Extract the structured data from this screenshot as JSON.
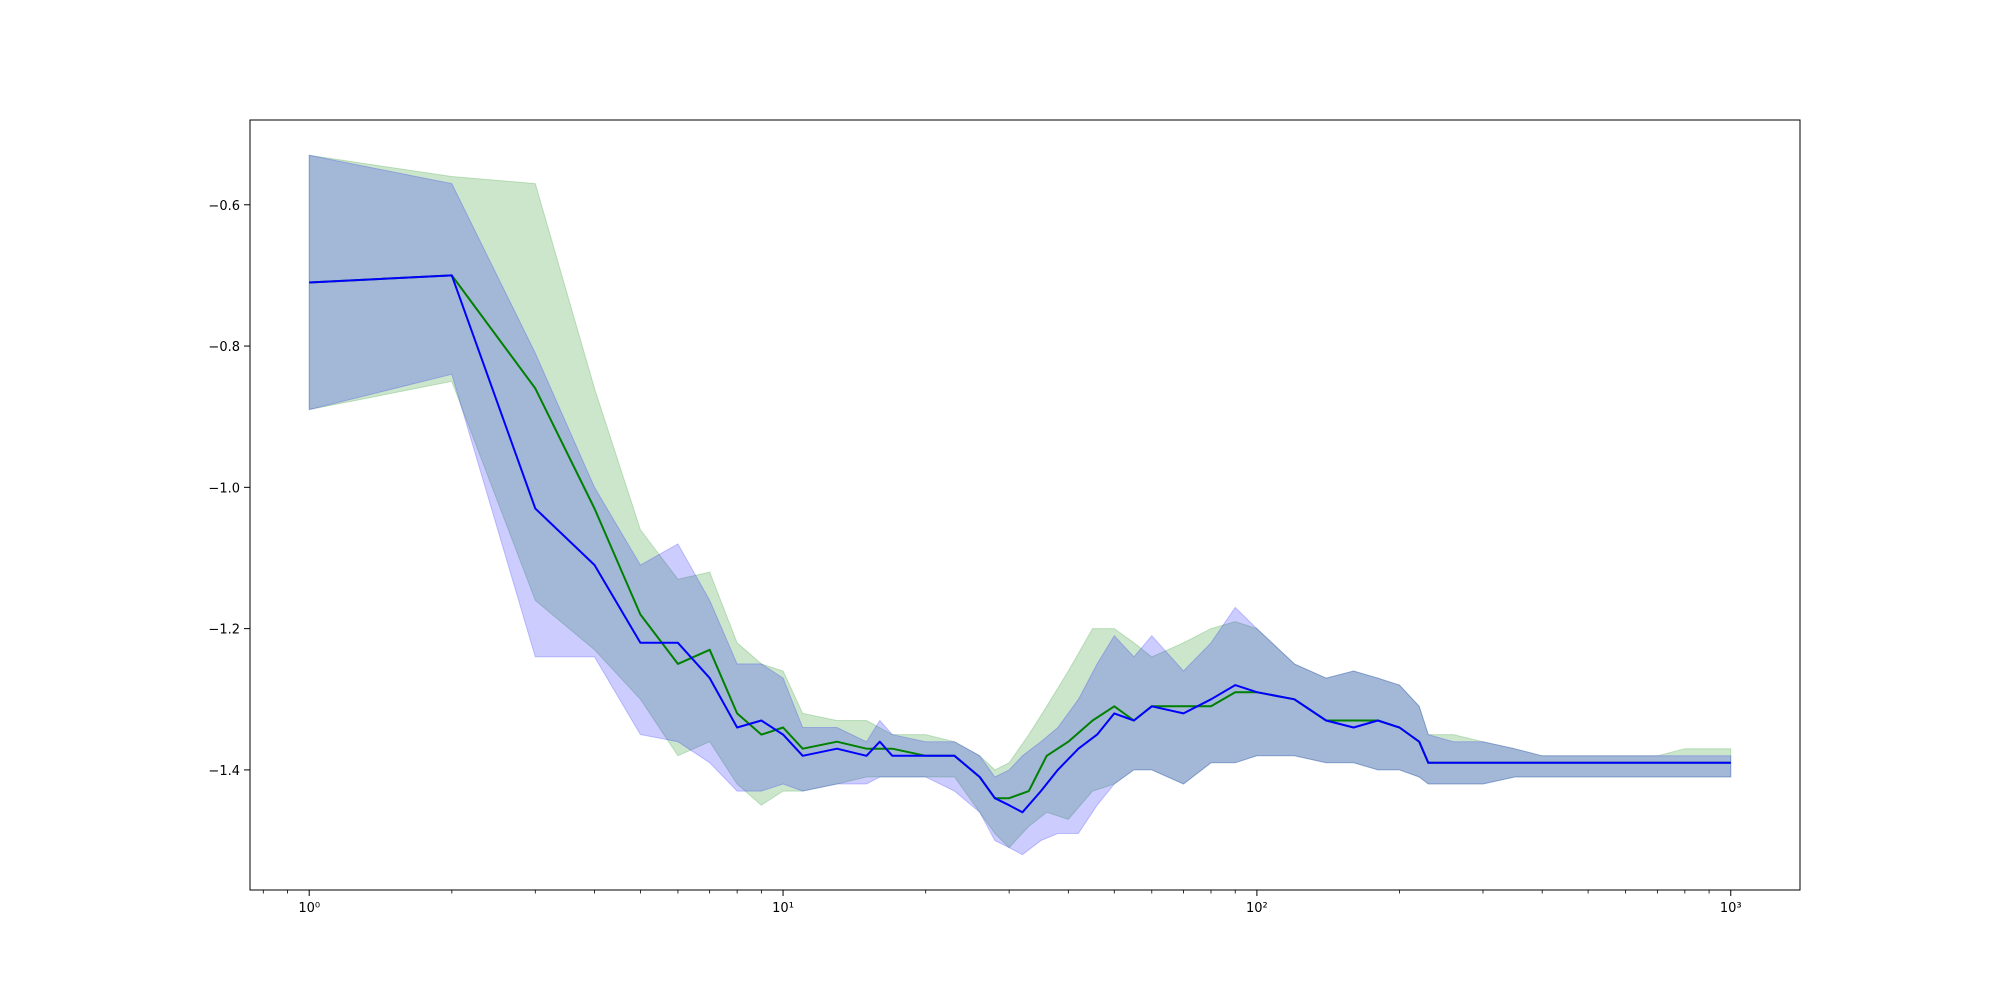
{
  "chart_data": {
    "type": "line",
    "title": "",
    "xlabel": "",
    "ylabel": "",
    "xscale": "log",
    "xlim": [
      0.75,
      1400
    ],
    "ylim": [
      -1.57,
      -0.48
    ],
    "grid": false,
    "legend": "none",
    "x_ticks": [
      {
        "value": 1,
        "label": "10⁰"
      },
      {
        "value": 10,
        "label": "10¹"
      },
      {
        "value": 100,
        "label": "10²"
      },
      {
        "value": 1000,
        "label": "10³"
      }
    ],
    "y_ticks": [
      {
        "value": -0.6,
        "label": "−0.6"
      },
      {
        "value": -0.8,
        "label": "−0.8"
      },
      {
        "value": -1.0,
        "label": "−1.0"
      },
      {
        "value": -1.2,
        "label": "−1.2"
      },
      {
        "value": -1.4,
        "label": "−1.4"
      }
    ],
    "series": [
      {
        "color": "#008000",
        "band_color": "#008000",
        "x": [
          1,
          2,
          3,
          4,
          5,
          6,
          7,
          8,
          9,
          10,
          11,
          13,
          15,
          17,
          20,
          23,
          26,
          28,
          30,
          33,
          36,
          40,
          45,
          50,
          55,
          60,
          70,
          80,
          90,
          100,
          120,
          140,
          160,
          180,
          200,
          220,
          230,
          260,
          300,
          350,
          400,
          500,
          600,
          700,
          800,
          900,
          1000
        ],
        "y": [
          -0.71,
          -0.7,
          -0.86,
          -1.03,
          -1.18,
          -1.25,
          -1.23,
          -1.32,
          -1.35,
          -1.34,
          -1.37,
          -1.36,
          -1.37,
          -1.37,
          -1.38,
          -1.38,
          -1.41,
          -1.44,
          -1.44,
          -1.43,
          -1.38,
          -1.36,
          -1.33,
          -1.31,
          -1.33,
          -1.31,
          -1.31,
          -1.31,
          -1.29,
          -1.29,
          -1.3,
          -1.33,
          -1.33,
          -1.33,
          -1.34,
          -1.36,
          -1.39,
          -1.39,
          -1.39,
          -1.39,
          -1.39,
          -1.39,
          -1.39,
          -1.39,
          -1.39,
          -1.39,
          -1.39
        ],
        "upper": [
          -0.53,
          -0.56,
          -0.57,
          -0.86,
          -1.06,
          -1.13,
          -1.12,
          -1.22,
          -1.25,
          -1.26,
          -1.32,
          -1.33,
          -1.33,
          -1.35,
          -1.35,
          -1.36,
          -1.38,
          -1.4,
          -1.39,
          -1.35,
          -1.31,
          -1.26,
          -1.2,
          -1.2,
          -1.22,
          -1.24,
          -1.22,
          -1.2,
          -1.19,
          -1.2,
          -1.25,
          -1.27,
          -1.26,
          -1.27,
          -1.28,
          -1.31,
          -1.35,
          -1.35,
          -1.36,
          -1.37,
          -1.38,
          -1.38,
          -1.38,
          -1.38,
          -1.37,
          -1.37,
          -1.37
        ],
        "lower": [
          -0.89,
          -0.85,
          -1.16,
          -1.23,
          -1.3,
          -1.38,
          -1.36,
          -1.42,
          -1.45,
          -1.43,
          -1.43,
          -1.42,
          -1.41,
          -1.41,
          -1.41,
          -1.41,
          -1.46,
          -1.49,
          -1.51,
          -1.48,
          -1.46,
          -1.47,
          -1.43,
          -1.42,
          -1.4,
          -1.4,
          -1.42,
          -1.39,
          -1.39,
          -1.38,
          -1.38,
          -1.39,
          -1.39,
          -1.4,
          -1.4,
          -1.41,
          -1.42,
          -1.42,
          -1.42,
          -1.41,
          -1.41,
          -1.41,
          -1.41,
          -1.41,
          -1.41,
          -1.41,
          -1.41
        ]
      },
      {
        "color": "#0000ff",
        "band_color": "#0000ff",
        "x": [
          1,
          2,
          3,
          4,
          5,
          6,
          7,
          8,
          9,
          10,
          11,
          13,
          15,
          16,
          17,
          20,
          23,
          26,
          28,
          30,
          32,
          35,
          38,
          42,
          46,
          50,
          55,
          60,
          70,
          80,
          90,
          100,
          120,
          140,
          160,
          180,
          200,
          220,
          230,
          260,
          300,
          350,
          400,
          500,
          600,
          700,
          800,
          900,
          1000
        ],
        "y": [
          -0.71,
          -0.7,
          -1.03,
          -1.11,
          -1.22,
          -1.22,
          -1.27,
          -1.34,
          -1.33,
          -1.35,
          -1.38,
          -1.37,
          -1.38,
          -1.36,
          -1.38,
          -1.38,
          -1.38,
          -1.41,
          -1.44,
          -1.45,
          -1.46,
          -1.43,
          -1.4,
          -1.37,
          -1.35,
          -1.32,
          -1.33,
          -1.31,
          -1.32,
          -1.3,
          -1.28,
          -1.29,
          -1.3,
          -1.33,
          -1.34,
          -1.33,
          -1.34,
          -1.36,
          -1.39,
          -1.39,
          -1.39,
          -1.39,
          -1.39,
          -1.39,
          -1.39,
          -1.39,
          -1.39,
          -1.39,
          -1.39
        ],
        "upper": [
          -0.53,
          -0.57,
          -0.81,
          -1.0,
          -1.11,
          -1.08,
          -1.16,
          -1.25,
          -1.25,
          -1.27,
          -1.34,
          -1.34,
          -1.36,
          -1.33,
          -1.35,
          -1.36,
          -1.36,
          -1.38,
          -1.41,
          -1.4,
          -1.38,
          -1.36,
          -1.34,
          -1.3,
          -1.25,
          -1.21,
          -1.24,
          -1.21,
          -1.26,
          -1.22,
          -1.17,
          -1.2,
          -1.25,
          -1.27,
          -1.26,
          -1.27,
          -1.28,
          -1.31,
          -1.35,
          -1.36,
          -1.36,
          -1.37,
          -1.38,
          -1.38,
          -1.38,
          -1.38,
          -1.38,
          -1.38,
          -1.38
        ],
        "lower": [
          -0.89,
          -0.84,
          -1.24,
          -1.24,
          -1.35,
          -1.36,
          -1.39,
          -1.43,
          -1.43,
          -1.42,
          -1.43,
          -1.42,
          -1.42,
          -1.41,
          -1.41,
          -1.41,
          -1.43,
          -1.46,
          -1.5,
          -1.51,
          -1.52,
          -1.5,
          -1.49,
          -1.49,
          -1.45,
          -1.42,
          -1.4,
          -1.4,
          -1.42,
          -1.39,
          -1.39,
          -1.38,
          -1.38,
          -1.39,
          -1.39,
          -1.4,
          -1.4,
          -1.41,
          -1.42,
          -1.42,
          -1.42,
          -1.41,
          -1.41,
          -1.41,
          -1.41,
          -1.41,
          -1.41,
          -1.41,
          -1.41
        ]
      }
    ]
  }
}
